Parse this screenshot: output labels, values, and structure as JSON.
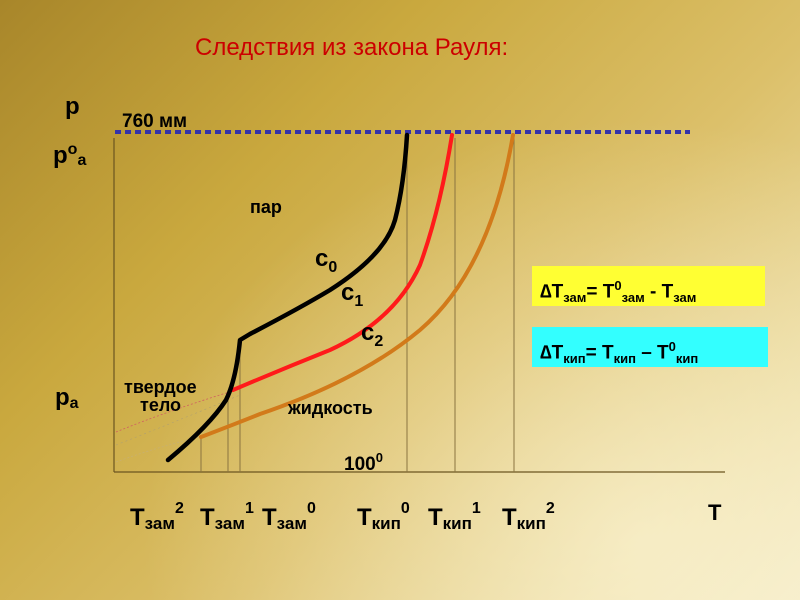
{
  "title": "Следствия из закона Рауля:",
  "axis": {
    "y_label": "p",
    "x_label": "T",
    "p0a": {
      "base": "p",
      "sup": "o",
      "sub": "a"
    },
    "pa": {
      "base": "p",
      "sub": "a"
    },
    "mm760": "760 мм",
    "t100": {
      "base": "100",
      "sup": "0"
    }
  },
  "regions": {
    "vapor": "пар",
    "liquid": "жидкость",
    "solid_line1": "твердое",
    "solid_line2": "тело"
  },
  "curves": [
    {
      "base": "c",
      "sub": "0",
      "color": "#000000"
    },
    {
      "base": "c",
      "sub": "1",
      "color": "#ff1a1a"
    },
    {
      "base": "c",
      "sub": "2",
      "color": "#d27a1a"
    }
  ],
  "x_ticks": [
    {
      "base": "T",
      "sub": "зам",
      "sup": "2"
    },
    {
      "base": "T",
      "sub": "зам",
      "sup": "1"
    },
    {
      "base": "T",
      "sub": "зам",
      "sup": "0"
    },
    {
      "base": "T",
      "sub": "кип",
      "sup": "0"
    },
    {
      "base": "T",
      "sub": "кип",
      "sup": "1"
    },
    {
      "base": "T",
      "sub": "кип",
      "sup": "2"
    }
  ],
  "formulas": {
    "freezing": {
      "delta": "∆",
      "t": "T",
      "sub1": "зам",
      "eq": "= T",
      "sup": "0",
      "sub2": "зам",
      "minus": " - T",
      "sub3": "зам"
    },
    "boiling": {
      "delta": "∆",
      "t": "T",
      "sub1": "кип",
      "eq": "= T",
      "sub2": "кип",
      "minus": " – T",
      "sup": "0",
      "sub3": "кип"
    }
  },
  "colors": {
    "box_bg": "#ffff33",
    "box_bg_2": "#33ffff",
    "dashed_line": "#3333aa",
    "axis": "#6b5520",
    "title": "#cc0000"
  }
}
